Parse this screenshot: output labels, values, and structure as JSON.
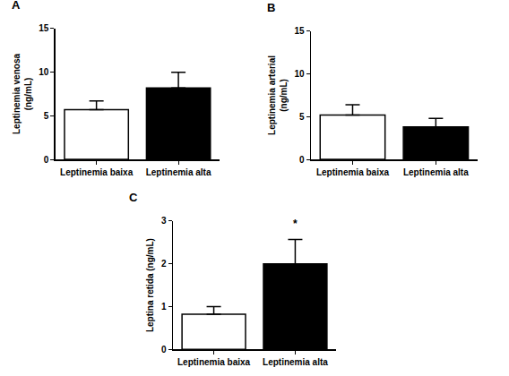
{
  "chart_data": [
    {
      "type": "bar",
      "title": "A",
      "categories": [
        "Leptinemia baixa",
        "Leptinemia alta"
      ],
      "values": [
        5.7,
        8.2
      ],
      "errors": [
        1.0,
        1.8
      ],
      "colors": [
        "#ffffff",
        "#000000"
      ],
      "y_label": "Leptinemia venosa (ng/mL)",
      "ylim": [
        0,
        15
      ],
      "yticks": [
        0,
        5,
        10,
        15
      ],
      "grid": false
    },
    {
      "type": "bar",
      "title": "B",
      "categories": [
        "Leptinemia baixa",
        "Leptinemia alta"
      ],
      "values": [
        5.2,
        3.8
      ],
      "errors": [
        1.2,
        1.0
      ],
      "colors": [
        "#ffffff",
        "#000000"
      ],
      "y_label": "Leptinemia arterial (ng/mL)",
      "ylim": [
        0,
        15
      ],
      "yticks": [
        0,
        5,
        10,
        15
      ],
      "grid": false
    },
    {
      "type": "bar",
      "title": "C",
      "categories": [
        "Leptinemia baixa",
        "Leptinemia alta"
      ],
      "values": [
        0.82,
        2.0
      ],
      "errors": [
        0.18,
        0.57
      ],
      "colors": [
        "#ffffff",
        "#000000"
      ],
      "y_label": "Leptina retida (ng/mL)",
      "ylim": [
        0,
        3
      ],
      "yticks": [
        0,
        1,
        2,
        3
      ],
      "grid": false,
      "annotations": [
        {
          "text": "*",
          "category": 1
        }
      ]
    }
  ]
}
